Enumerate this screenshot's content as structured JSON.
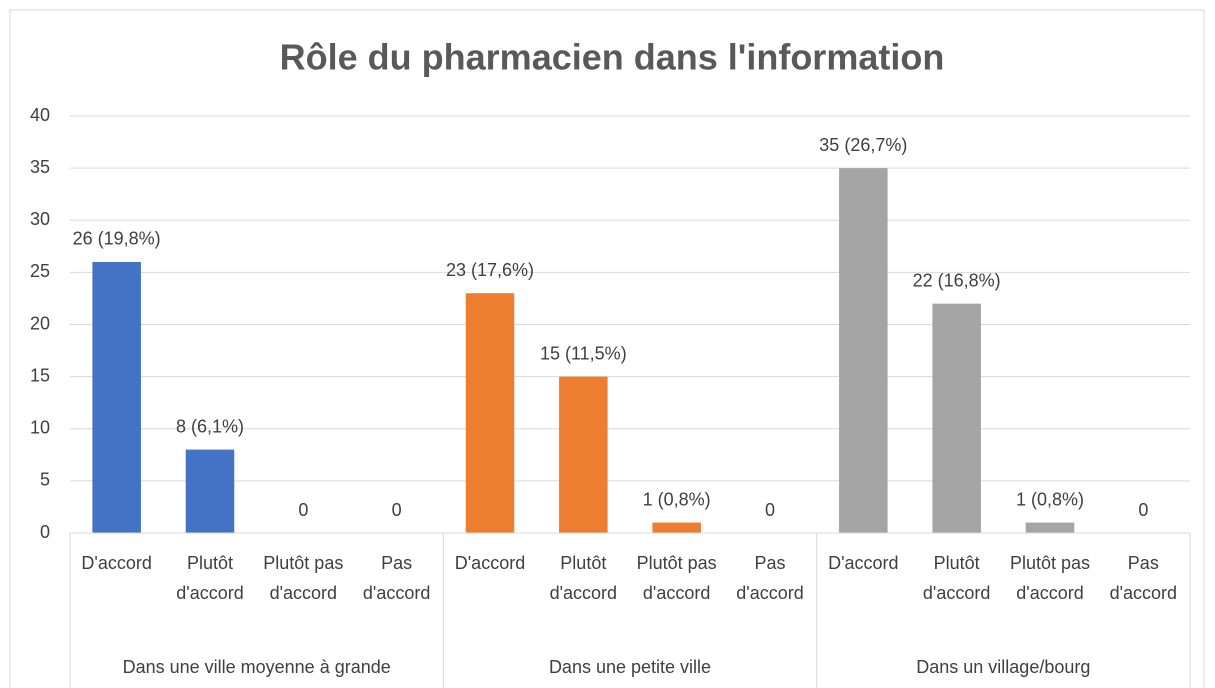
{
  "chart_data": {
    "type": "bar",
    "title": "Rôle du pharmacien dans l'information",
    "categories": [
      "D'accord",
      "Plutôt d'accord",
      "Plutôt pas d'accord",
      "Pas d'accord"
    ],
    "series": [
      {
        "name": "Dans une ville moyenne à grande",
        "color": "#4472c4",
        "values": [
          26,
          8,
          0,
          0
        ],
        "value_labels": [
          "26 (19,8%)",
          "8 (6,1%)",
          "0",
          "0"
        ]
      },
      {
        "name": "Dans une petite ville",
        "color": "#ed7d31",
        "values": [
          23,
          15,
          1,
          0
        ],
        "value_labels": [
          "23 (17,6%)",
          "15 (11,5%)",
          "1 (0,8%)",
          "0"
        ]
      },
      {
        "name": "Dans un village/bourg",
        "color": "#a5a5a5",
        "values": [
          35,
          22,
          1,
          0
        ],
        "value_labels": [
          "35 (26,7%)",
          "22 (16,8%)",
          "1 (0,8%)",
          "0"
        ]
      }
    ],
    "ylim": [
      0,
      40
    ],
    "yticks": [
      0,
      5,
      10,
      15,
      20,
      25,
      30,
      35,
      40
    ],
    "grid": true
  }
}
